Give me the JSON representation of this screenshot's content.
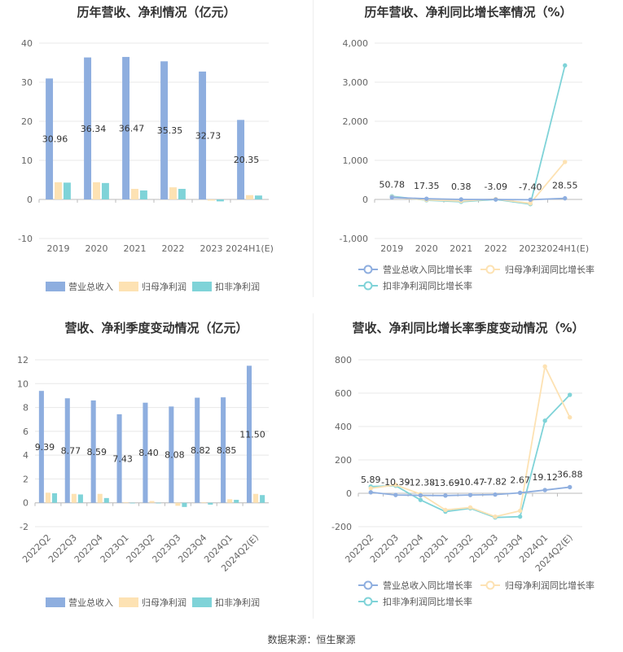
{
  "footer": "数据来源：恒生聚源",
  "colors": {
    "revenue": "#8eaedf",
    "parent": "#fde2b3",
    "deduct": "#7fd3d8",
    "grid": "#e8e8e8"
  },
  "chart_data": [
    {
      "id": "c1",
      "type": "bar",
      "title": "历年营收、净利情况（亿元）",
      "categories": [
        "2019",
        "2020",
        "2021",
        "2022",
        "2023",
        "2024H1(E)"
      ],
      "ylim": [
        -10,
        40
      ],
      "yticks": [
        "-10",
        "0",
        "10",
        "20",
        "30",
        "40"
      ],
      "series": [
        {
          "name": "营业总收入",
          "values": [
            30.96,
            36.34,
            36.47,
            35.35,
            32.73,
            20.35
          ]
        },
        {
          "name": "归母净利润",
          "values": [
            4.4,
            4.4,
            2.7,
            3.1,
            -0.3,
            1.1
          ]
        },
        {
          "name": "扣非净利润",
          "values": [
            4.3,
            4.2,
            2.3,
            2.7,
            -0.5,
            1.0
          ]
        }
      ],
      "data_labels": [
        "30.96",
        "36.34",
        "36.47",
        "35.35",
        "32.73",
        "20.35"
      ],
      "legend": "bottom"
    },
    {
      "id": "c2",
      "type": "line",
      "title": "历年营收、净利同比增长率情况（%）",
      "categories": [
        "2019",
        "2020",
        "2021",
        "2022",
        "2023",
        "2024H1(E)"
      ],
      "ylim": [
        -1000,
        4000
      ],
      "yticks": [
        "-1,000",
        "0",
        "1,000",
        "2,000",
        "3,000",
        "4,000"
      ],
      "series": [
        {
          "name": "营业总收入同比增长率",
          "values": [
            50.78,
            17.35,
            0.38,
            -3.09,
            -7.4,
            28.55
          ]
        },
        {
          "name": "归母净利润同比增长率",
          "values": [
            60,
            -10,
            -40,
            10,
            -100,
            960
          ]
        },
        {
          "name": "扣非净利润同比增长率",
          "values": [
            80,
            -20,
            -60,
            0,
            -120,
            3430
          ]
        }
      ],
      "data_labels": [
        "50.78",
        "17.35",
        "0.38",
        "-3.09",
        "-7.40",
        "28.55"
      ],
      "legend": "bottom"
    },
    {
      "id": "c3",
      "type": "bar",
      "title": "营收、净利季度变动情况（亿元）",
      "categories": [
        "2022Q2",
        "2022Q3",
        "2022Q4",
        "2023Q1",
        "2023Q2",
        "2023Q3",
        "2023Q4",
        "2024Q1",
        "2024Q2(E)"
      ],
      "ylim": [
        -2,
        12
      ],
      "yticks": [
        "-2",
        "0",
        "2",
        "4",
        "6",
        "8",
        "10",
        "12"
      ],
      "series": [
        {
          "name": "营业总收入",
          "values": [
            9.39,
            8.77,
            8.59,
            7.43,
            8.4,
            8.08,
            8.82,
            8.85,
            11.5
          ]
        },
        {
          "name": "归母净利润",
          "values": [
            0.85,
            0.75,
            0.75,
            0.05,
            0.15,
            -0.25,
            0.05,
            0.3,
            0.75
          ]
        },
        {
          "name": "扣非净利润",
          "values": [
            0.8,
            0.7,
            0.4,
            -0.05,
            -0.05,
            -0.35,
            -0.15,
            0.25,
            0.65
          ]
        }
      ],
      "data_labels": [
        "9.39",
        "8.77",
        "8.59",
        "7.43",
        "8.40",
        "8.08",
        "8.82",
        "8.85",
        "11.50"
      ],
      "legend": "bottom"
    },
    {
      "id": "c4",
      "type": "line",
      "title": "营收、净利同比增长率季度变动情况（%）",
      "categories": [
        "2022Q2",
        "2022Q3",
        "2022Q4",
        "2023Q1",
        "2023Q2",
        "2023Q3",
        "2023Q4",
        "2024Q1",
        "2024Q2(E)"
      ],
      "ylim": [
        -200,
        800
      ],
      "yticks": [
        "-200",
        "0",
        "200",
        "400",
        "600",
        "800"
      ],
      "series": [
        {
          "name": "营业总收入同比增长率",
          "values": [
            5.89,
            -10.39,
            -12.38,
            -13.69,
            -10.47,
            -7.82,
            2.67,
            19.12,
            36.88
          ]
        },
        {
          "name": "归母净利润同比增长率",
          "values": [
            30,
            50,
            -5,
            -100,
            -85,
            -140,
            -105,
            760,
            455
          ]
        },
        {
          "name": "扣非净利润同比增长率",
          "values": [
            40,
            45,
            -40,
            -110,
            -90,
            -145,
            -140,
            435,
            590
          ]
        }
      ],
      "data_labels": [
        "5.89",
        "-10.39",
        "-12.38",
        "-13.69",
        "-10.47",
        "-7.82",
        "2.67",
        "19.12",
        "36.88"
      ],
      "legend": "bottom"
    }
  ]
}
